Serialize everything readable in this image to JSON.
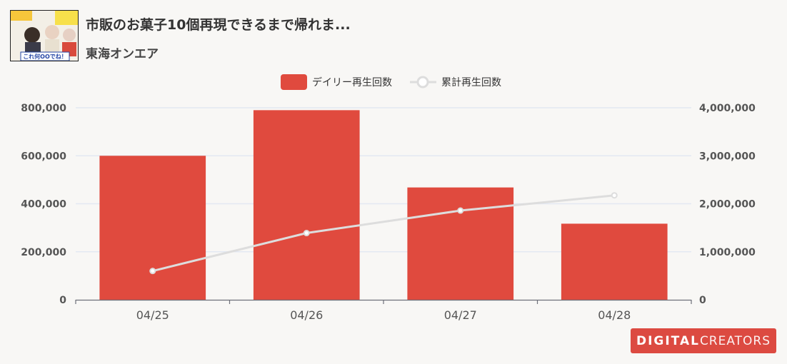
{
  "header": {
    "title": "市販のお菓子10個再現できるまで帰れま...",
    "channel": "東海オンエア",
    "thumbnail_text": "これ何OOでね！"
  },
  "badge": {
    "text_bold": "DIGITAL",
    "text_light": "CREATORS"
  },
  "colors": {
    "bar": "#e04a3e",
    "line": "#dddddd",
    "grid": "#e3e8f2",
    "background": "#f8f7f5"
  },
  "chart_data": {
    "type": "bar",
    "categories": [
      "04/25",
      "04/26",
      "04/27",
      "04/28"
    ],
    "series": [
      {
        "name": "デイリー再生回数",
        "type": "bar",
        "axis": "left",
        "values": [
          600000,
          790000,
          468000,
          317000
        ]
      },
      {
        "name": "累計再生回数",
        "type": "line",
        "axis": "right",
        "values": [
          600000,
          1390000,
          1858000,
          2175000
        ]
      }
    ],
    "y_left": {
      "min": 0,
      "max": 800000,
      "ticks": [
        "0",
        "200,000",
        "400,000",
        "600,000",
        "800,000"
      ]
    },
    "y_right": {
      "min": 0,
      "max": 4000000,
      "ticks": [
        "0",
        "1,000,000",
        "2,000,000",
        "3,000,000",
        "4,000,000"
      ]
    },
    "legend_position": "top-center",
    "grid": true
  }
}
